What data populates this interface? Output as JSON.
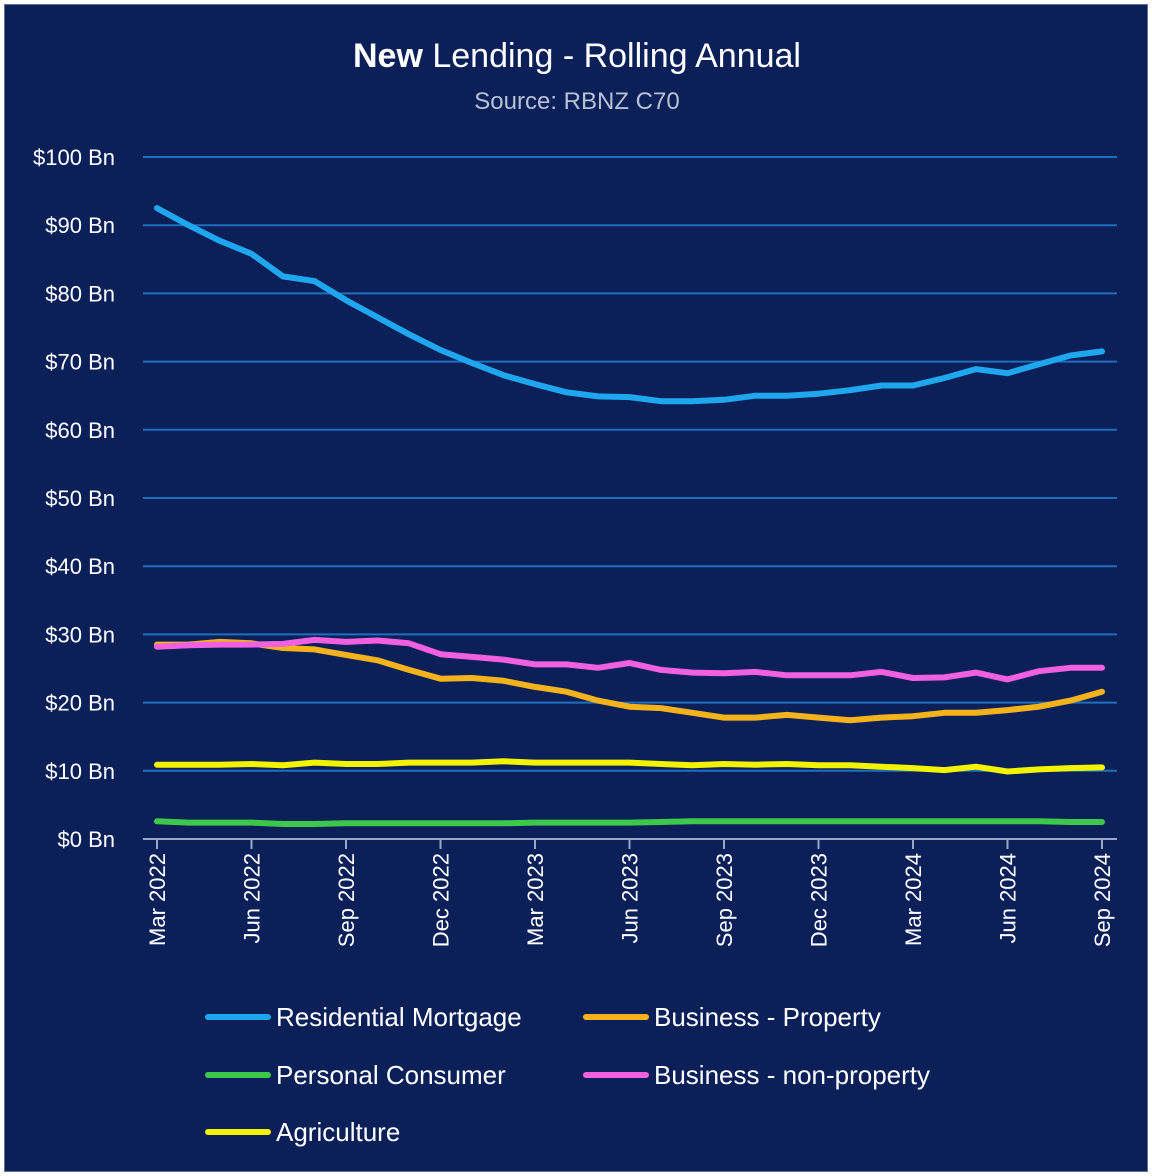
{
  "chart_data": {
    "type": "line",
    "title_bold": "New",
    "title_rest": " Lending - Rolling Annual",
    "subtitle": "Source: RBNZ C70",
    "ylim": [
      0,
      100
    ],
    "y_ticks": [
      0,
      10,
      20,
      30,
      40,
      50,
      60,
      70,
      80,
      90,
      100
    ],
    "y_tick_labels": [
      "$0 Bn",
      "$10 Bn",
      "$20 Bn",
      "$30 Bn",
      "$40 Bn",
      "$50 Bn",
      "$60 Bn",
      "$70 Bn",
      "$80 Bn",
      "$90 Bn",
      "$100 Bn"
    ],
    "x": [
      "Mar 2022",
      "Apr 2022",
      "May 2022",
      "Jun 2022",
      "Jul 2022",
      "Aug 2022",
      "Sep 2022",
      "Oct 2022",
      "Nov 2022",
      "Dec 2022",
      "Jan 2023",
      "Feb 2023",
      "Mar 2023",
      "Apr 2023",
      "May 2023",
      "Jun 2023",
      "Jul 2023",
      "Aug 2023",
      "Sep 2023",
      "Oct 2023",
      "Nov 2023",
      "Dec 2023",
      "Jan 2024",
      "Feb 2024",
      "Mar 2024",
      "Apr 2024",
      "May 2024",
      "Jun 2024",
      "Jul 2024",
      "Aug 2024",
      "Sep 2024"
    ],
    "x_tick_labels": [
      "Mar 2022",
      "Jun 2022",
      "Sep 2022",
      "Dec 2022",
      "Mar 2023",
      "Jun 2023",
      "Sep 2023",
      "Dec 2023",
      "Mar 2024",
      "Jun 2024",
      "Sep 2024"
    ],
    "x_tick_every": 3,
    "grid": true,
    "legend_position": "bottom",
    "series": [
      {
        "name": "Residential Mortgage",
        "color": "#1ea7ef",
        "values": [
          92.5,
          90.0,
          87.7,
          85.8,
          82.5,
          81.8,
          79.0,
          76.5,
          74.0,
          71.7,
          69.8,
          68.0,
          66.7,
          65.5,
          64.9,
          64.8,
          64.2,
          64.2,
          64.4,
          65.0,
          65.0,
          65.3,
          65.8,
          66.5,
          66.5,
          67.6,
          68.9,
          68.3,
          69.6,
          70.9,
          71.5
        ]
      },
      {
        "name": "Business - Property",
        "color": "#f5b31b",
        "values": [
          28.5,
          28.5,
          28.9,
          28.7,
          28.0,
          27.8,
          27.0,
          26.2,
          24.8,
          23.5,
          23.6,
          23.2,
          22.3,
          21.6,
          20.3,
          19.4,
          19.2,
          18.5,
          17.8,
          17.8,
          18.2,
          17.8,
          17.4,
          17.8,
          18.0,
          18.5,
          18.5,
          18.9,
          19.4,
          20.3,
          21.6
        ]
      },
      {
        "name": "Personal Consumer",
        "color": "#3cc84a",
        "values": [
          2.6,
          2.4,
          2.4,
          2.4,
          2.2,
          2.2,
          2.3,
          2.3,
          2.3,
          2.3,
          2.3,
          2.3,
          2.4,
          2.4,
          2.4,
          2.4,
          2.5,
          2.6,
          2.6,
          2.6,
          2.6,
          2.6,
          2.6,
          2.6,
          2.6,
          2.6,
          2.6,
          2.6,
          2.6,
          2.5,
          2.5
        ]
      },
      {
        "name": "Business - non-property",
        "color": "#f060e0",
        "values": [
          28.2,
          28.4,
          28.5,
          28.5,
          28.6,
          29.2,
          28.9,
          29.1,
          28.7,
          27.1,
          26.7,
          26.3,
          25.6,
          25.6,
          25.1,
          25.8,
          24.8,
          24.4,
          24.3,
          24.5,
          24.0,
          24.0,
          24.0,
          24.5,
          23.6,
          23.7,
          24.4,
          23.4,
          24.6,
          25.1,
          25.1
        ]
      },
      {
        "name": "Agriculture",
        "color": "#f3f300",
        "values": [
          10.9,
          10.9,
          10.9,
          11.0,
          10.8,
          11.2,
          11.0,
          11.0,
          11.2,
          11.2,
          11.2,
          11.4,
          11.2,
          11.2,
          11.2,
          11.2,
          11.0,
          10.8,
          11.0,
          10.9,
          11.0,
          10.8,
          10.8,
          10.6,
          10.4,
          10.1,
          10.6,
          9.9,
          10.2,
          10.4,
          10.5
        ]
      }
    ]
  }
}
